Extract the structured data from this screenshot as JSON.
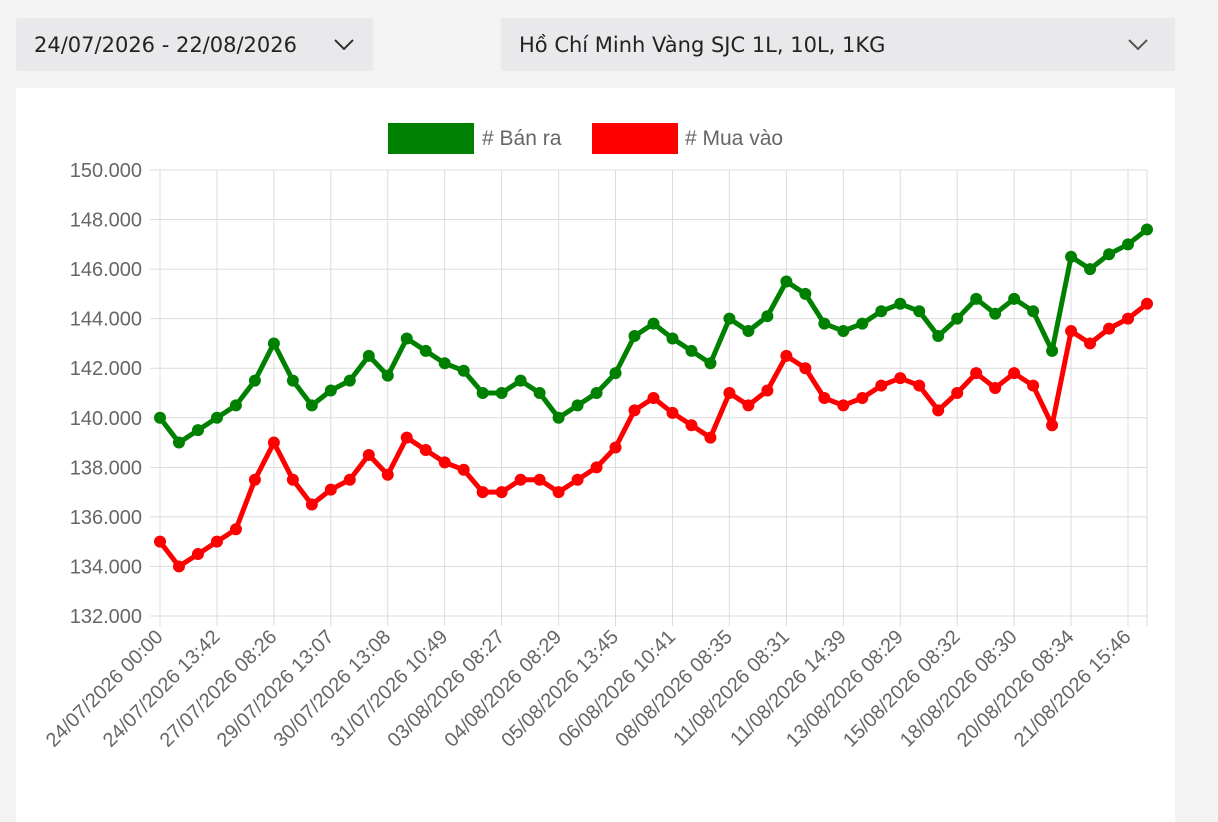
{
  "filters": {
    "date_range": "24/07/2026 - 22/08/2026",
    "product": "Hồ Chí Minh Vàng SJC 1L, 10L, 1KG"
  },
  "icons": {
    "dropdown": "chevron-down-icon"
  },
  "chart_data": {
    "type": "line",
    "title": "",
    "xlabel": "",
    "ylabel": "",
    "ylim": [
      132000,
      150000
    ],
    "ytick_step": 2000,
    "ytick_labels": [
      "132.000",
      "134.000",
      "136.000",
      "138.000",
      "140.000",
      "142.000",
      "144.000",
      "146.000",
      "148.000",
      "150.000"
    ],
    "grid": true,
    "legend_position": "top-center",
    "x_tick_labels": [
      "24/07/2026 00:00",
      "24/07/2026 13:42",
      "27/07/2026 08:26",
      "29/07/2026 13:07",
      "30/07/2026 13:08",
      "31/07/2026 10:49",
      "03/08/2026 08:27",
      "04/08/2026 08:29",
      "05/08/2026 13:45",
      "06/08/2026 10:41",
      "08/08/2026 08:35",
      "11/08/2026 08:31",
      "11/08/2026 14:39",
      "13/08/2026 08:29",
      "15/08/2026 08:32",
      "18/08/2026 08:30",
      "20/08/2026 08:34",
      "21/08/2026 15:46"
    ],
    "series": [
      {
        "name": "# Bán ra",
        "color": "#008000",
        "values": [
          140000,
          139000,
          139500,
          140000,
          140500,
          141500,
          143000,
          141500,
          140500,
          141100,
          141500,
          142500,
          141700,
          143200,
          142700,
          142200,
          141900,
          141000,
          141000,
          141500,
          141000,
          140000,
          140500,
          141000,
          141800,
          143300,
          143800,
          143200,
          142700,
          142200,
          144000,
          143500,
          144100,
          145500,
          145000,
          143800,
          143500,
          143800,
          144300,
          144600,
          144300,
          143300,
          144000,
          144800,
          144200,
          144800,
          144300,
          142700,
          146500,
          146000,
          146600,
          147000,
          147600
        ]
      },
      {
        "name": "# Mua vào",
        "color": "#ff0000",
        "values": [
          135000,
          134000,
          134500,
          135000,
          135500,
          137500,
          139000,
          137500,
          136500,
          137100,
          137500,
          138500,
          137700,
          139200,
          138700,
          138200,
          137900,
          137000,
          137000,
          137500,
          137500,
          137000,
          137500,
          138000,
          138800,
          140300,
          140800,
          140200,
          139700,
          139200,
          141000,
          140500,
          141100,
          142500,
          142000,
          140800,
          140500,
          140800,
          141300,
          141600,
          141300,
          140300,
          141000,
          141800,
          141200,
          141800,
          141300,
          139700,
          143500,
          143000,
          143600,
          144000,
          144600
        ]
      }
    ]
  }
}
